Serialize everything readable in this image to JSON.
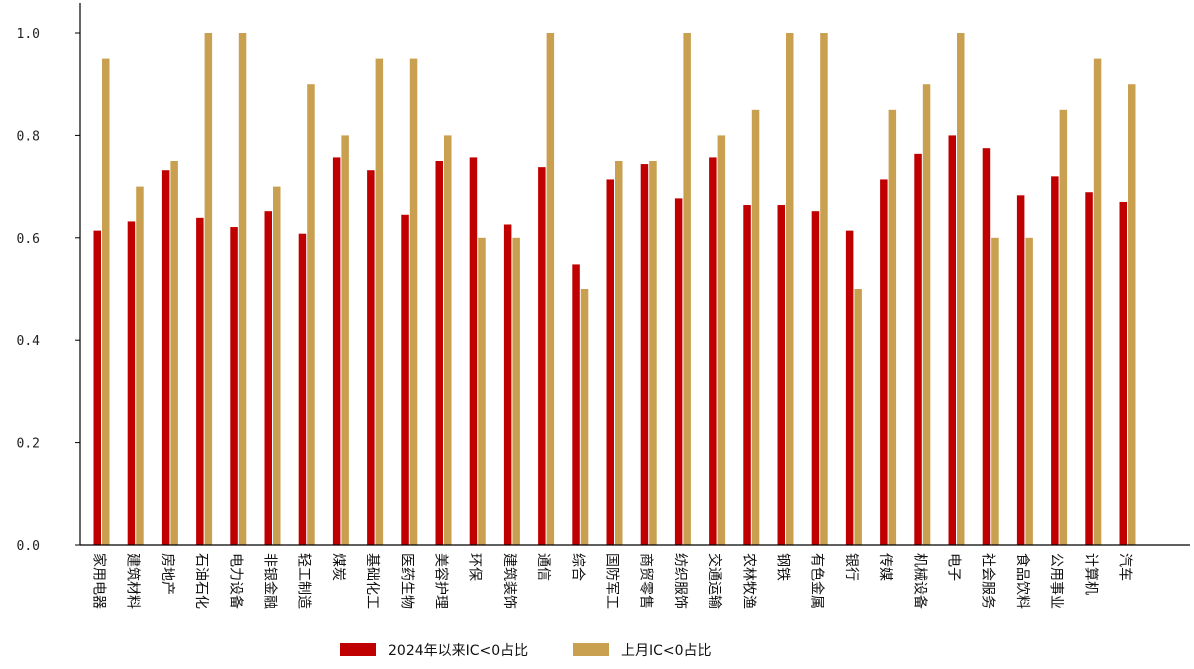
{
  "chart_data": {
    "type": "bar",
    "title": "",
    "xlabel": "",
    "ylabel": "",
    "ylim": [
      0,
      1.0
    ],
    "yticks": [
      "0.0",
      "0.2",
      "0.4",
      "0.6",
      "0.8",
      "1.0"
    ],
    "grid": false,
    "legend_position": "bottom-center",
    "categories": [
      "家用电器",
      "建筑材料",
      "房地产",
      "石油石化",
      "电力设备",
      "非银金融",
      "轻工制造",
      "煤炭",
      "基础化工",
      "医药生物",
      "美容护理",
      "环保",
      "建筑装饰",
      "通信",
      "综合",
      "国防军工",
      "商贸零售",
      "纺织服饰",
      "交通运输",
      "农林牧渔",
      "钢铁",
      "有色金属",
      "银行",
      "传媒",
      "机械设备",
      "电子",
      "社会服务",
      "食品饮料",
      "公用事业",
      "计算机",
      "汽车"
    ],
    "series": [
      {
        "name": "2024年以来IC<0占比",
        "color": "#c00000",
        "values": [
          0.614,
          0.632,
          0.732,
          0.639,
          0.621,
          0.652,
          0.608,
          0.757,
          0.732,
          0.645,
          0.75,
          0.757,
          0.626,
          0.738,
          0.548,
          0.714,
          0.744,
          0.677,
          0.757,
          0.664,
          0.664,
          0.652,
          0.614,
          0.714,
          0.764,
          0.8,
          0.775,
          0.683,
          0.72,
          0.689,
          0.67
        ]
      },
      {
        "name": "上月IC<0占比",
        "color": "#c9a050",
        "values": [
          0.95,
          0.7,
          0.75,
          1.0,
          1.0,
          0.7,
          0.9,
          0.8,
          0.95,
          0.95,
          0.8,
          0.6,
          0.6,
          1.0,
          0.5,
          0.75,
          0.75,
          1.0,
          0.8,
          0.85,
          1.0,
          1.0,
          0.5,
          0.85,
          0.9,
          1.0,
          0.6,
          0.6,
          0.85,
          0.95,
          0.9
        ]
      }
    ]
  }
}
